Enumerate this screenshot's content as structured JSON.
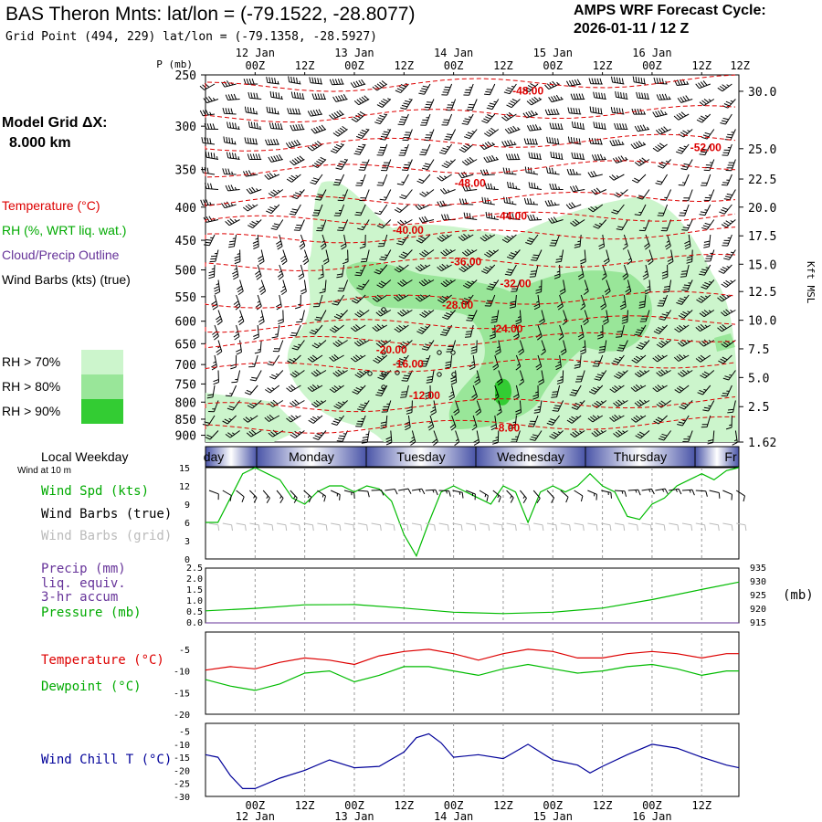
{
  "header": {
    "title": "BAS Theron Mnts:  lat/lon = (-79.1522, -28.8077)",
    "gridpoint": "Grid Point (494, 229) lat/lon = (-79.1358, -28.5927)",
    "cycle_label": "AMPS WRF Forecast Cycle:",
    "cycle_value": "2026-01-11 / 12  Z",
    "dx_label": "Model Grid ΔX:",
    "dx_value": "8.000 km"
  },
  "legend": {
    "temperature": "Temperature (°C)",
    "rh": "RH (%, WRT liq. wat.)",
    "cloud": "Cloud/Precip Outline",
    "wind": "Wind Barbs (kts) (true)",
    "rh_levels": [
      "RH > 70%",
      "RH > 80%",
      "RH > 90%"
    ]
  },
  "colors": {
    "temperature": "#dd0000",
    "rh70": "#ccf5cc",
    "rh80": "#99e699",
    "rh90": "#33cc33",
    "green_line": "#00bb00",
    "windchill": "#000099",
    "purple": "#663399",
    "grid_barb": "#bbbbbb"
  },
  "time_axis": {
    "top_ticks": [
      "12 Jan 00Z",
      "12Z",
      "13 Jan 00Z",
      "12Z",
      "14 Jan 00Z",
      "12Z",
      "15 Jan 00Z",
      "12Z",
      "16 Jan 00Z",
      "12Z"
    ],
    "top_dates": [
      "12 Jan",
      "13 Jan",
      "14 Jan",
      "15 Jan",
      "16 Jan"
    ],
    "tick_labels": [
      "00Z",
      "12Z",
      "00Z",
      "12Z",
      "00Z",
      "12Z",
      "00Z",
      "12Z",
      "00Z",
      "12Z"
    ],
    "p_unit": "P (mb)",
    "days": [
      "day",
      "Monday",
      "Tuesday",
      "Wednesday",
      "Thursday",
      "Fr"
    ]
  },
  "chart_data": [
    {
      "type": "heatmap",
      "title": "Cross-section",
      "ylabel": "P (mb)",
      "y2label": "Kft MSL",
      "yticks": [
        250,
        300,
        350,
        400,
        450,
        500,
        550,
        600,
        650,
        700,
        750,
        800,
        850,
        900
      ],
      "y2ticks": [
        "30.0",
        "25.0",
        "22.5",
        "20.0",
        "17.5",
        "15.0",
        "12.5",
        "10.0",
        "7.5",
        "5.0",
        "2.5",
        "1.62"
      ],
      "y2ticks_mb": [
        265,
        325,
        362,
        400,
        443,
        490,
        540,
        598,
        662,
        733,
        813,
        922
      ],
      "isotherm_labels": [
        {
          "t": 66,
          "p": 268,
          "label": "-48.00"
        },
        {
          "t": 109,
          "p": 328,
          "label": "-52.00"
        },
        {
          "t": 52,
          "p": 372,
          "label": "-48.00"
        },
        {
          "t": 62,
          "p": 418,
          "label": "-44.00"
        },
        {
          "t": 37,
          "p": 440,
          "label": "-40.00"
        },
        {
          "t": 51,
          "p": 492,
          "label": "-36.00"
        },
        {
          "t": 63,
          "p": 532,
          "label": "-32.00"
        },
        {
          "t": 49,
          "p": 574,
          "label": "-28.00"
        },
        {
          "t": 61,
          "p": 625,
          "label": "-24.00"
        },
        {
          "t": 33,
          "p": 673,
          "label": "-20.00"
        },
        {
          "t": 37,
          "p": 708,
          "label": "-16.00"
        },
        {
          "t": 41,
          "p": 792,
          "label": "-12.00"
        },
        {
          "t": 61,
          "p": 888,
          "label": "-8.00"
        }
      ]
    },
    {
      "type": "line",
      "title": "Wind at 10 m",
      "labels": [
        "Local Weekday",
        "Wind at 10 m",
        "Wind Spd (kts)",
        "Wind Barbs (true)",
        "Wind Barbs (grid)"
      ],
      "yticks": [
        0,
        3,
        6,
        9,
        12,
        15
      ],
      "ylim": [
        0,
        15
      ],
      "x": [
        -12,
        -9,
        -6,
        -3,
        0,
        3,
        6,
        9,
        12,
        15,
        18,
        21,
        24,
        27,
        30,
        33,
        36,
        39,
        42,
        45,
        48,
        51,
        54,
        57,
        60,
        63,
        66,
        69,
        72,
        75,
        78,
        81,
        84,
        87,
        90,
        93,
        96,
        99,
        102,
        105,
        108,
        111,
        114,
        117
      ],
      "series": [
        {
          "name": "Wind Spd (kts)",
          "values": [
            6,
            6,
            10,
            14,
            15,
            14,
            13,
            10,
            9,
            11,
            12,
            12,
            11,
            12,
            11.5,
            9.5,
            4,
            0.5,
            6,
            11,
            12,
            11,
            10,
            9,
            12,
            11,
            6,
            11,
            12,
            11,
            12,
            14,
            12,
            11,
            7,
            6.5,
            9,
            10,
            12,
            13,
            14,
            13,
            14.5,
            15
          ]
        }
      ]
    },
    {
      "type": "line",
      "title": "Precip / Pressure",
      "labels": [
        "Precip (mm)",
        "liq. equiv.",
        "3-hr accum",
        "Pressure (mb)"
      ],
      "yticks": [
        "0.0",
        "0.5",
        "1.0",
        "1.5",
        "2.0",
        "2.5"
      ],
      "ylim": [
        0,
        2.5
      ],
      "y2ticks": [
        915,
        920,
        925,
        930,
        935
      ],
      "y2lim": [
        915,
        935
      ],
      "x": [
        -12,
        0,
        12,
        24,
        36,
        48,
        60,
        72,
        84,
        96,
        108,
        117
      ],
      "series": [
        {
          "name": "Pressure (mb)",
          "values": [
            919.4,
            920.3,
            921.6,
            921.7,
            920.4,
            918.9,
            918.4,
            918.9,
            920.4,
            923.5,
            927.2,
            929.9
          ]
        },
        {
          "name": "Precip (mm)",
          "values": [
            0,
            0,
            0,
            0,
            0,
            0,
            0,
            0,
            0,
            0,
            0,
            0
          ]
        }
      ]
    },
    {
      "type": "line",
      "title": "Temperature / Dewpoint",
      "labels": [
        "Temperature (°C)",
        "Dewpoint (°C)"
      ],
      "yticks": [
        -20,
        -15,
        -10,
        -5
      ],
      "ylim": [
        -20,
        -1
      ],
      "x": [
        -12,
        -6,
        0,
        6,
        12,
        18,
        24,
        30,
        36,
        42,
        48,
        54,
        60,
        66,
        72,
        78,
        84,
        90,
        96,
        102,
        108,
        114,
        117
      ],
      "series": [
        {
          "name": "Temperature (°C)",
          "values": [
            -9.8,
            -9,
            -9.5,
            -8,
            -7,
            -7.5,
            -8.5,
            -6.5,
            -5.5,
            -5,
            -6,
            -7.5,
            -6,
            -5,
            -5.5,
            -7,
            -7,
            -6,
            -5.5,
            -6,
            -7,
            -6,
            -6
          ]
        },
        {
          "name": "Dewpoint (°C)",
          "values": [
            -12,
            -13.5,
            -14.5,
            -13,
            -10.5,
            -10,
            -12.5,
            -11,
            -9,
            -9,
            -10,
            -11,
            -9.5,
            -8.5,
            -9.5,
            -10.5,
            -10,
            -9,
            -8.5,
            -9.5,
            -11,
            -10,
            -10
          ]
        }
      ]
    },
    {
      "type": "line",
      "title": "Wind Chill",
      "labels": [
        "Wind Chill T (°C)"
      ],
      "yticks": [
        -30,
        -25,
        -20,
        -15,
        -10,
        -5
      ],
      "ylim": [
        -30,
        -2
      ],
      "x": [
        -12,
        -9,
        -6,
        -3,
        0,
        6,
        12,
        18,
        24,
        30,
        36,
        39,
        42,
        45,
        48,
        54,
        60,
        66,
        72,
        78,
        81,
        84,
        90,
        96,
        102,
        108,
        114,
        117
      ],
      "series": [
        {
          "name": "Wind Chill T (°C)",
          "values": [
            -14,
            -15,
            -22,
            -27,
            -27,
            -23,
            -20,
            -16,
            -19,
            -18.5,
            -13,
            -7.5,
            -6,
            -9.5,
            -15,
            -14,
            -15.5,
            -10,
            -16,
            -18,
            -21,
            -18.5,
            -14,
            -10,
            -11.5,
            -15,
            -18,
            -19
          ]
        }
      ]
    }
  ]
}
